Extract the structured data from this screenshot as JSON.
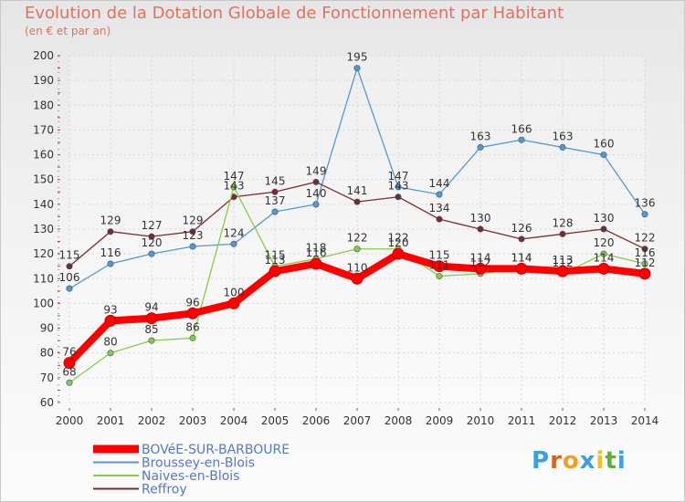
{
  "chart_data": {
    "type": "line",
    "title": "Evolution de la Dotation Globale de Fonctionnement par Habitant",
    "subtitle": "(en € et par an)",
    "x": [
      "2000",
      "2001",
      "2002",
      "2003",
      "2004",
      "2005",
      "2006",
      "2007",
      "2008",
      "2009",
      "2010",
      "2011",
      "2012",
      "2013",
      "2014"
    ],
    "ylim": [
      60,
      200
    ],
    "yticks": [
      60,
      70,
      80,
      90,
      100,
      110,
      120,
      130,
      140,
      150,
      160,
      170,
      180,
      190,
      200
    ],
    "grid": true,
    "legend_position": "bottom-left",
    "series": [
      {
        "name": "BOVéE-SUR-BARBOURE",
        "color": "#ff0000",
        "values": [
          76,
          93,
          94,
          96,
          100,
          113,
          116,
          110,
          120,
          115,
          114,
          114,
          113,
          114,
          112
        ]
      },
      {
        "name": "Broussey-en-Blois",
        "color": "#5599cc",
        "values": [
          106,
          116,
          120,
          123,
          124,
          137,
          140,
          195,
          147,
          144,
          163,
          166,
          163,
          160,
          136
        ]
      },
      {
        "name": "Naives-en-Blois",
        "color": "#88cc44",
        "values": [
          68,
          80,
          85,
          86,
          147,
          115,
          118,
          122,
          122,
          111,
          112,
          114,
          112,
          120,
          116
        ]
      },
      {
        "name": "Reffroy",
        "color": "#7a2a2a",
        "values": [
          115,
          129,
          127,
          129,
          143,
          145,
          149,
          141,
          143,
          134,
          130,
          126,
          128,
          130,
          122
        ]
      }
    ]
  },
  "logo": {
    "letters": [
      "P",
      "r",
      "o",
      "x",
      "i",
      "t",
      "i"
    ],
    "colors": [
      "#3aa0e0",
      "#e06020",
      "#f0a020",
      "#3aa0e0",
      "#f0c020",
      "#60b030",
      "#3aa0e0"
    ]
  }
}
